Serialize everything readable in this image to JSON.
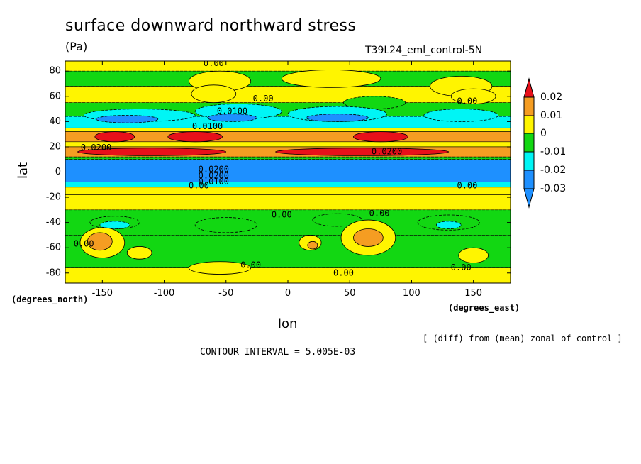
{
  "chart_data": {
    "type": "heatmap",
    "title": "surface downward northward stress",
    "units": "(Pa)",
    "experiment": "T39L24_eml_control-5N",
    "xlabel": "lon",
    "ylabel": "lat",
    "xunits": "(degrees_east)",
    "yunits": "(degrees_north)",
    "xlim": [
      -180,
      180
    ],
    "ylim": [
      -88,
      88
    ],
    "xticks": [
      "-150",
      "-100",
      "-50",
      "0",
      "50",
      "100",
      "150"
    ],
    "xtick_values": [
      -150,
      -100,
      -50,
      0,
      50,
      100,
      150
    ],
    "yticks": [
      "80",
      "60",
      "40",
      "20",
      "0",
      "-20",
      "-40",
      "-60",
      "-80"
    ],
    "ytick_values": [
      80,
      60,
      40,
      20,
      0,
      -20,
      -40,
      -60,
      -80
    ],
    "note": "[ (diff) from (mean) zonal of control ]",
    "contour_interval": "CONTOUR INTERVAL = 5.005E-03",
    "legend": {
      "placement": "right",
      "labels": [
        "0.02",
        "0.01",
        "0",
        "-0.01",
        "-0.02",
        "-0.03"
      ],
      "label_values": [
        0.02,
        0.01,
        0,
        -0.01,
        -0.02,
        -0.03
      ],
      "colors_top_to_bottom": [
        "#e8101a",
        "#f59d22",
        "#fff500",
        "#12d712",
        "#00f5f5",
        "#1e90ff"
      ]
    },
    "zonal_bands": [
      {
        "lat_min": 80,
        "lat_max": 88,
        "value": 0.003
      },
      {
        "lat_min": 68,
        "lat_max": 80,
        "value": -0.003
      },
      {
        "lat_min": 55,
        "lat_max": 68,
        "value": 0.001
      },
      {
        "lat_min": 44,
        "lat_max": 55,
        "value": -0.008
      },
      {
        "lat_min": 35,
        "lat_max": 44,
        "value": -0.017
      },
      {
        "lat_min": 32,
        "lat_max": 35,
        "value": 0.003
      },
      {
        "lat_min": 24,
        "lat_max": 32,
        "value": 0.012
      },
      {
        "lat_min": 20,
        "lat_max": 24,
        "value": 0.003
      },
      {
        "lat_min": 12,
        "lat_max": 20,
        "value": 0.016
      },
      {
        "lat_min": 10,
        "lat_max": 12,
        "value": -0.008
      },
      {
        "lat_min": -8,
        "lat_max": 10,
        "value": -0.032
      },
      {
        "lat_min": -12,
        "lat_max": -8,
        "value": -0.016
      },
      {
        "lat_min": -18,
        "lat_max": -12,
        "value": 0.002
      },
      {
        "lat_min": -30,
        "lat_max": -18,
        "value": 0.003
      },
      {
        "lat_min": -50,
        "lat_max": -30,
        "value": -0.006
      },
      {
        "lat_min": -76,
        "lat_max": -50,
        "value": -0.003
      },
      {
        "lat_min": -88,
        "lat_max": -76,
        "value": 0.002
      }
    ],
    "features": [
      {
        "lon": -55,
        "lat": 72,
        "rx": 25,
        "ry": 8,
        "value": 0.003
      },
      {
        "lon": 35,
        "lat": 74,
        "rx": 40,
        "ry": 7,
        "value": 0.003
      },
      {
        "lon": 140,
        "lat": 68,
        "rx": 25,
        "ry": 8,
        "value": 0.003
      },
      {
        "lon": -60,
        "lat": 62,
        "rx": 18,
        "ry": 7,
        "value": 0.002
      },
      {
        "lon": 150,
        "lat": 60,
        "rx": 18,
        "ry": 6,
        "value": 0.002
      },
      {
        "lon": 70,
        "lat": 55,
        "rx": 25,
        "ry": 5,
        "value": -0.007
      },
      {
        "lon": -120,
        "lat": 45,
        "rx": 45,
        "ry": 5,
        "value": -0.016
      },
      {
        "lon": -40,
        "lat": 48,
        "rx": 35,
        "ry": 6,
        "value": -0.016
      },
      {
        "lon": 40,
        "lat": 46,
        "rx": 40,
        "ry": 6,
        "value": -0.017
      },
      {
        "lon": 140,
        "lat": 45,
        "rx": 30,
        "ry": 5,
        "value": -0.013
      },
      {
        "lon": -130,
        "lat": 42,
        "rx": 25,
        "ry": 3,
        "value": -0.023
      },
      {
        "lon": -45,
        "lat": 43,
        "rx": 20,
        "ry": 3,
        "value": -0.023
      },
      {
        "lon": 40,
        "lat": 43,
        "rx": 25,
        "ry": 3,
        "value": -0.024
      },
      {
        "lon": -140,
        "lat": 28,
        "rx": 16,
        "ry": 4,
        "value": 0.022
      },
      {
        "lon": -75,
        "lat": 28,
        "rx": 22,
        "ry": 4,
        "value": 0.022
      },
      {
        "lon": 75,
        "lat": 28,
        "rx": 22,
        "ry": 4,
        "value": 0.022
      },
      {
        "lon": -110,
        "lat": 16,
        "rx": 60,
        "ry": 3,
        "value": 0.021
      },
      {
        "lon": 60,
        "lat": 16,
        "rx": 70,
        "ry": 3,
        "value": 0.021
      },
      {
        "lon": -50,
        "lat": -42,
        "rx": 25,
        "ry": 6,
        "value": -0.007
      },
      {
        "lon": 40,
        "lat": -38,
        "rx": 20,
        "ry": 5,
        "value": -0.007
      },
      {
        "lon": 130,
        "lat": -40,
        "rx": 25,
        "ry": 6,
        "value": -0.008
      },
      {
        "lon": -140,
        "lat": -40,
        "rx": 20,
        "ry": 5,
        "value": -0.008
      },
      {
        "lon": -140,
        "lat": -42,
        "rx": 12,
        "ry": 3,
        "value": -0.013
      },
      {
        "lon": 130,
        "lat": -42,
        "rx": 10,
        "ry": 3,
        "value": -0.013
      },
      {
        "lon": -150,
        "lat": -56,
        "rx": 18,
        "ry": 12,
        "value": 0.004
      },
      {
        "lon": -152,
        "lat": -55,
        "rx": 10,
        "ry": 7,
        "value": 0.013
      },
      {
        "lon": 65,
        "lat": -52,
        "rx": 22,
        "ry": 14,
        "value": 0.004
      },
      {
        "lon": 65,
        "lat": -52,
        "rx": 12,
        "ry": 7,
        "value": 0.013
      },
      {
        "lon": 18,
        "lat": -56,
        "rx": 9,
        "ry": 6,
        "value": 0.004
      },
      {
        "lon": 20,
        "lat": -58,
        "rx": 4,
        "ry": 3,
        "value": 0.013
      },
      {
        "lon": 150,
        "lat": -66,
        "rx": 12,
        "ry": 6,
        "value": 0.004
      },
      {
        "lon": -120,
        "lat": -64,
        "rx": 10,
        "ry": 5,
        "value": 0.002
      },
      {
        "lon": -55,
        "lat": -76,
        "rx": 25,
        "ry": 5,
        "value": 0.002
      }
    ],
    "contour_labels": [
      {
        "text": "0.00",
        "lon": -60,
        "lat": 86
      },
      {
        "text": "0.00",
        "lon": -20,
        "lat": 58
      },
      {
        "text": "0.0100",
        "lon": -45,
        "lat": 48
      },
      {
        "text": "0.00",
        "lon": 145,
        "lat": 56
      },
      {
        "text": "0.0100",
        "lon": -65,
        "lat": 36
      },
      {
        "text": "0.0200",
        "lon": -155,
        "lat": 19
      },
      {
        "text": "0.0200",
        "lon": 80,
        "lat": 16
      },
      {
        "text": "0.0200",
        "lon": -60,
        "lat": 2
      },
      {
        "text": "0.0200",
        "lon": -60,
        "lat": -3
      },
      {
        "text": "0.0100",
        "lon": -60,
        "lat": -8
      },
      {
        "text": "0.00",
        "lon": -72,
        "lat": -11
      },
      {
        "text": "0.00",
        "lon": 145,
        "lat": -11
      },
      {
        "text": "0.00",
        "lon": -5,
        "lat": -34
      },
      {
        "text": "0.00",
        "lon": 74,
        "lat": -33
      },
      {
        "text": "0.00",
        "lon": -165,
        "lat": -57
      },
      {
        "text": "0.00",
        "lon": -30,
        "lat": -74
      },
      {
        "text": "0.00",
        "lon": 45,
        "lat": -80
      },
      {
        "text": "0.00",
        "lon": 140,
        "lat": -76
      }
    ]
  }
}
